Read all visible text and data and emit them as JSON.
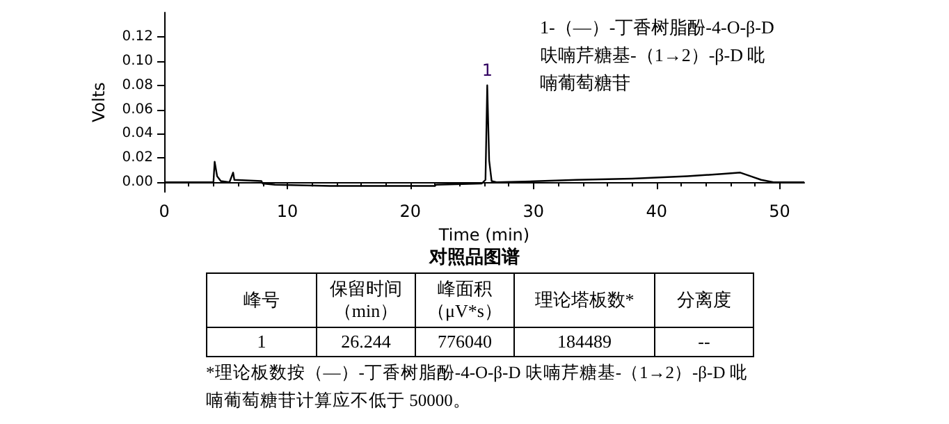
{
  "chart_data": {
    "type": "line",
    "title": "对照品图谱",
    "xlabel": "Time (min)",
    "ylabel": "Volts",
    "x": [
      0,
      4.0,
      4.1,
      4.3,
      4.6,
      5.3,
      5.6,
      5.7,
      7.9,
      8.0,
      9.0,
      13.5,
      22.0,
      22.1,
      25.8,
      26.1,
      26.244,
      26.4,
      26.6,
      27.0,
      30.5,
      33.5,
      38.0,
      42.5,
      45.5,
      46.8,
      48.5,
      49.5,
      52.0
    ],
    "series": [
      {
        "color": "#000000",
        "values": [
          0,
          0,
          0.017,
          0.005,
          0.001,
          0,
          0.008,
          0.002,
          0.001,
          -0.001,
          -0.002,
          -0.003,
          -0.003,
          -0.002,
          -0.001,
          0.002,
          0.08,
          0.018,
          0.001,
          0,
          0.001,
          0.002,
          0.003,
          0.005,
          0.007,
          0.008,
          0.002,
          0,
          0
        ]
      }
    ],
    "xlim": [
      0,
      52
    ],
    "xticks": [
      0,
      10,
      20,
      30,
      40,
      50
    ],
    "ylim": [
      -0.008,
      0.14
    ],
    "yticks": [
      {
        "value": 0,
        "label": "0.00"
      },
      {
        "value": 0.02,
        "label": "0.02"
      },
      {
        "value": 0.04,
        "label": "0.04"
      },
      {
        "value": 0.06,
        "label": "0.06"
      },
      {
        "value": 0.08,
        "label": "0.08"
      },
      {
        "value": 0.1,
        "label": "0.10"
      },
      {
        "value": 0.12,
        "label": "0.12"
      }
    ],
    "grid": false,
    "marker": "none",
    "line_style": "solid",
    "annotations": [
      {
        "text": "1",
        "x": 26.244,
        "y": 0.08
      },
      "1-（—）-丁香树脂酚-4-O-β-D 呋喃芹糖基-（1→2）-β-D 吡喃葡萄糖苷",
      "峰号",
      "保留时间（min）",
      "峰面积（μV*s）",
      "理论塔板数*",
      "分离度",
      "1",
      "26.244",
      "776040",
      "184489",
      "--",
      "*理论板数按（—）-丁香树脂酚-4-O-β-D 呋喃芹糖基-（1→2）-β-D 吡喃葡萄糖苷计算应不低于 50000。"
    ]
  }
}
